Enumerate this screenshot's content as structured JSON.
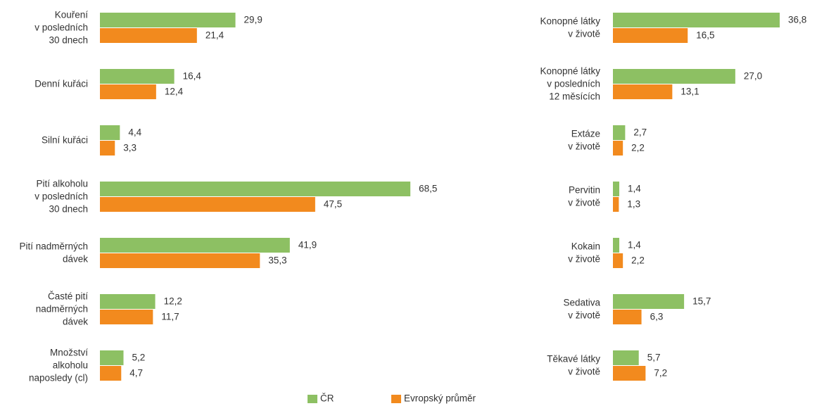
{
  "chart_data": [
    {
      "type": "bar",
      "orientation": "horizontal",
      "categories": [
        [
          "Kouření",
          "v posledních",
          "30 dnech"
        ],
        [
          "Denní kuřáci"
        ],
        [
          "Silní kuřáci"
        ],
        [
          "Pití alkoholu",
          "v posledních",
          "30 dnech"
        ],
        [
          "Pití nadměrných",
          "dávek"
        ],
        [
          "Časté pití",
          "nadměrných",
          "dávek"
        ],
        [
          "Množství",
          "alkoholu",
          "naposledy (cl)"
        ]
      ],
      "series": [
        {
          "values": [
            29.9,
            16.4,
            4.4,
            68.5,
            41.9,
            12.2,
            5.2
          ],
          "value_labels": [
            "29,9",
            "16,4",
            "4,4",
            "68,5",
            "41,9",
            "12,2",
            "5,2"
          ]
        },
        {
          "values": [
            21.4,
            12.4,
            3.3,
            47.5,
            35.3,
            11.7,
            4.7
          ],
          "value_labels": [
            "21,4",
            "12,4",
            "3,3",
            "47,5",
            "35,3",
            "11,7",
            "4,7"
          ]
        }
      ]
    },
    {
      "type": "bar",
      "orientation": "horizontal",
      "categories": [
        [
          "Konopné látky",
          "v životě"
        ],
        [
          "Konopné látky",
          "v posledních",
          "12 měsících"
        ],
        [
          "Extáze",
          "v životě"
        ],
        [
          "Pervitin",
          "v životě"
        ],
        [
          "Kokain",
          "v životě"
        ],
        [
          "Sedativa",
          "v životě"
        ],
        [
          "Těkavé látky",
          "v životě"
        ]
      ],
      "series": [
        {
          "values": [
            36.8,
            27.0,
            2.7,
            1.4,
            1.4,
            15.7,
            5.7
          ],
          "value_labels": [
            "36,8",
            "27,0",
            "2,7",
            "1,4",
            "1,4",
            "15,7",
            "5,7"
          ]
        },
        {
          "values": [
            16.5,
            13.1,
            2.2,
            1.3,
            2.2,
            6.3,
            7.2
          ],
          "value_labels": [
            "16,5",
            "13,1",
            "2,2",
            "1,3",
            "2,2",
            "6,3",
            "7,2"
          ]
        }
      ]
    }
  ],
  "legend": [
    {
      "name": "ČR",
      "color": "#8dc063"
    },
    {
      "name": "Evropský průměr",
      "color": "#f28a1e"
    }
  ]
}
